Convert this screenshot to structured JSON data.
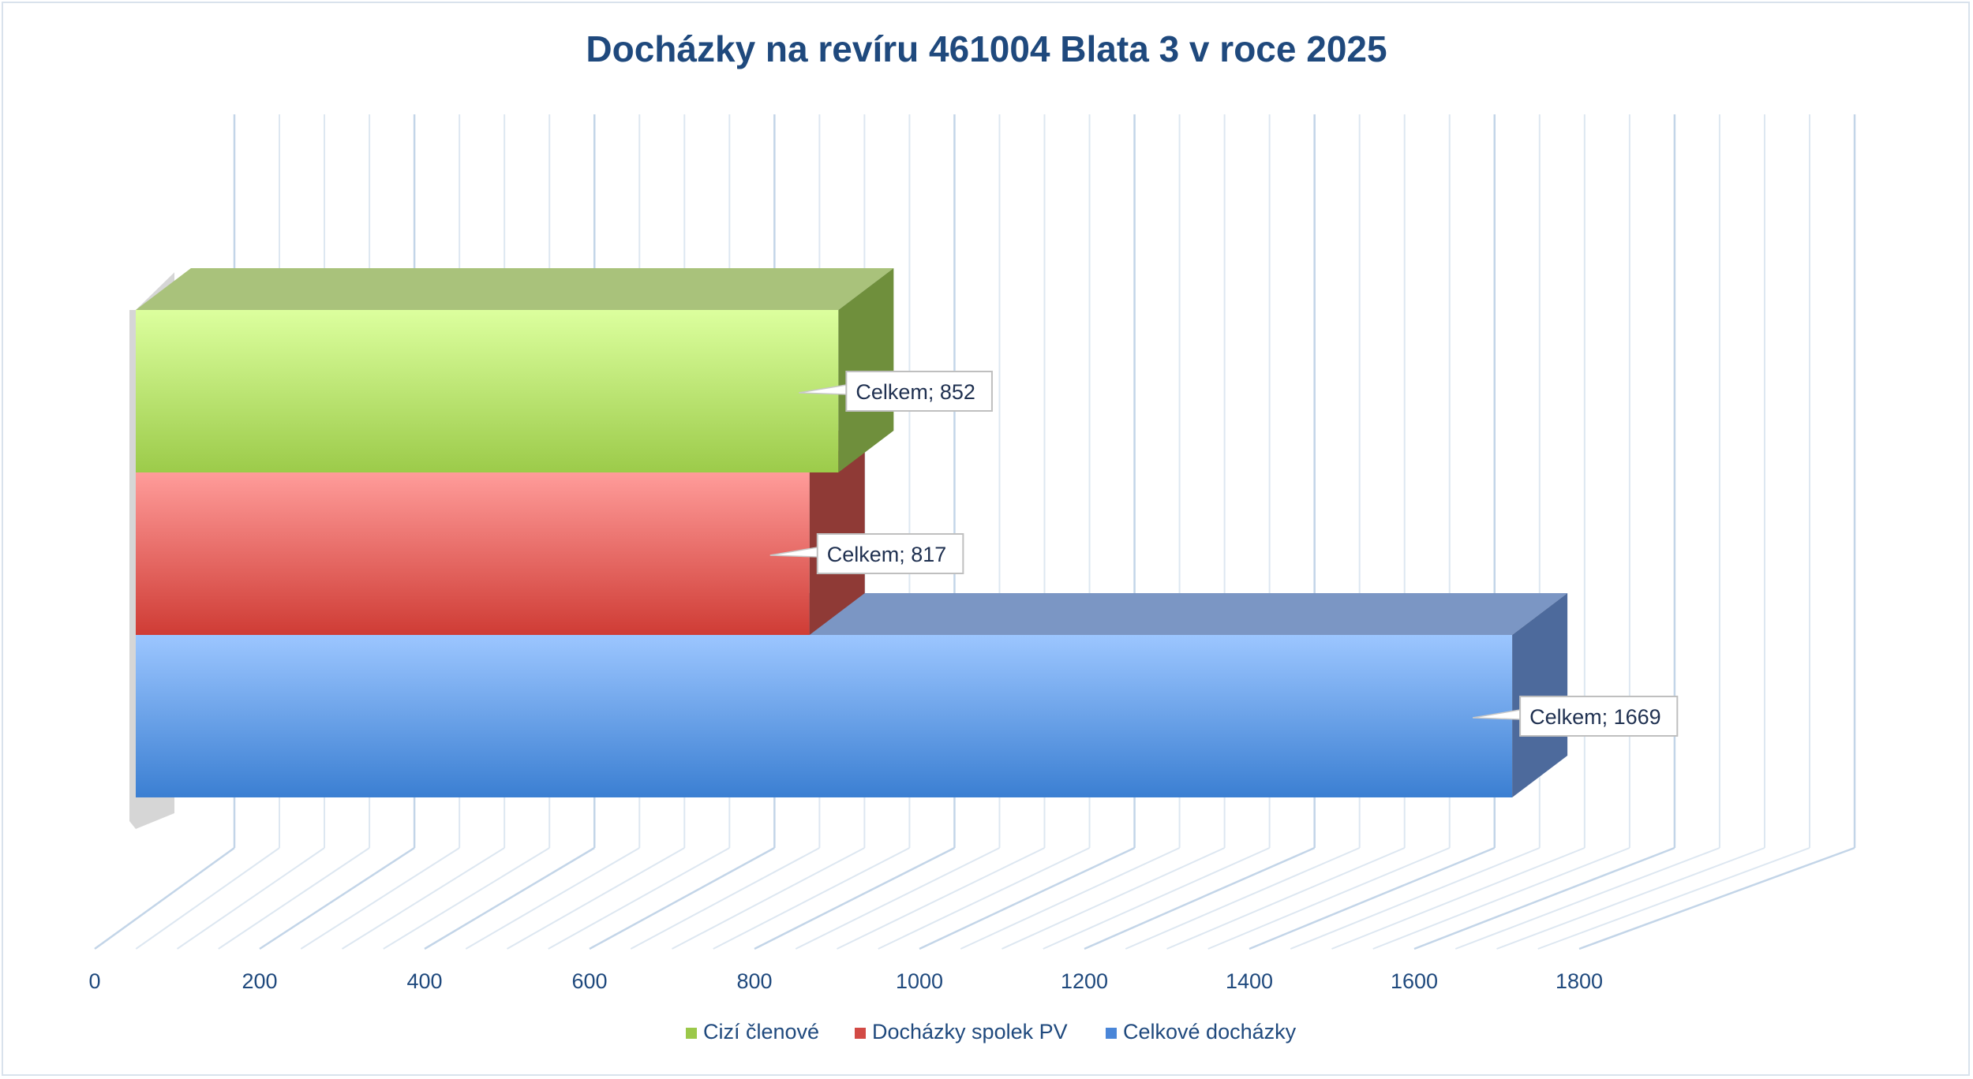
{
  "chart_data": {
    "type": "bar",
    "orientation": "horizontal",
    "three_d": true,
    "title": "Docházky na revíru 461004 Blata 3 v roce 2025",
    "xlim": [
      0,
      1800
    ],
    "x_ticks": [
      0,
      200,
      400,
      600,
      800,
      1000,
      1200,
      1400,
      1600,
      1800
    ],
    "grid": true,
    "legend_position": "bottom",
    "series": [
      {
        "name": "Cizí členové",
        "value": 852,
        "data_label": "Celkem; 852",
        "color": "#9bc84a"
      },
      {
        "name": "Docházky spolek PV",
        "value": 817,
        "data_label": "Celkem; 817",
        "color": "#d24a45"
      },
      {
        "name": "Celkové docházky",
        "value": 1669,
        "data_label": "Celkem; 1669",
        "color": "#4a86d8"
      }
    ]
  }
}
